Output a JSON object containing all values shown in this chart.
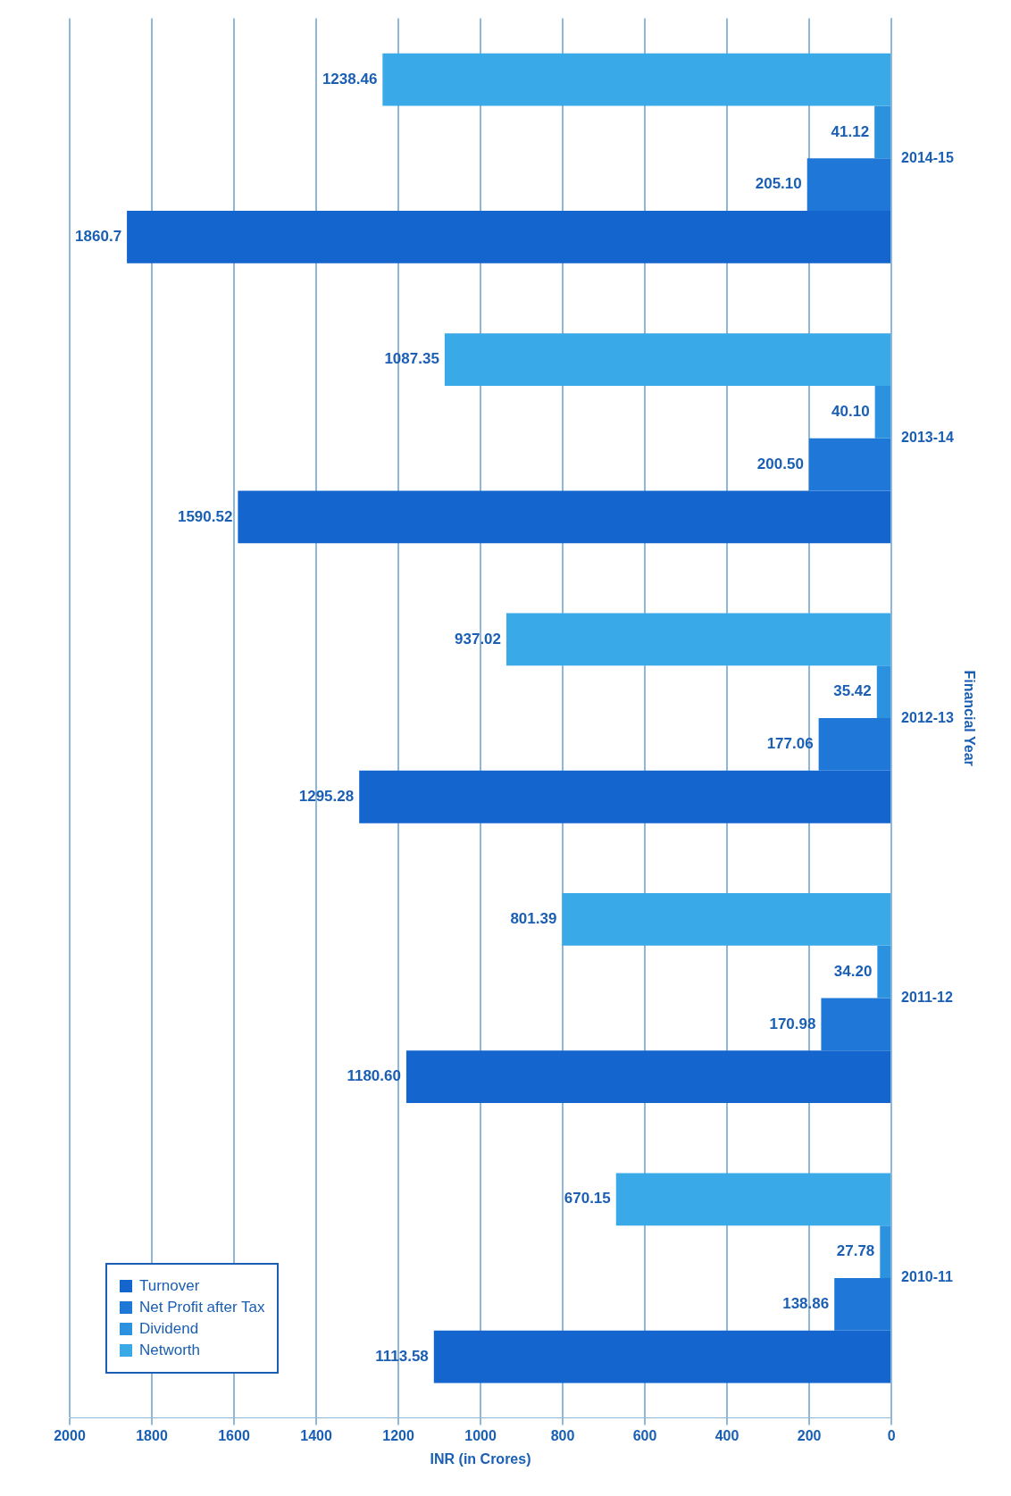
{
  "chart_data": {
    "type": "bar",
    "orientation": "horizontal",
    "xlabel": "INR (in Crores)",
    "ylabel": "Financial Year",
    "categories": [
      "2014-15",
      "2013-14",
      "2012-13",
      "2011-12",
      "2010-11"
    ],
    "series": [
      {
        "name": "Turnover",
        "color": "#1565cf",
        "values": [
          1860.7,
          1590.52,
          1295.28,
          1180.6,
          1113.58
        ],
        "value_labels": [
          "1860.7",
          "1590.52",
          "1295.28",
          "1180.60",
          "1113.58"
        ]
      },
      {
        "name": "Net Profit after Tax",
        "color": "#1f78d8",
        "values": [
          205.1,
          200.5,
          177.06,
          170.98,
          138.86
        ],
        "value_labels": [
          "205.10",
          "200.50",
          "177.06",
          "170.98",
          "138.86"
        ]
      },
      {
        "name": "Dividend",
        "color": "#2b92e0",
        "values": [
          41.12,
          40.1,
          35.42,
          34.2,
          27.78
        ],
        "value_labels": [
          "41.12",
          "40.10",
          "35.42",
          "34.20",
          "27.78"
        ]
      },
      {
        "name": "Networth",
        "color": "#3aa9e8",
        "values": [
          1238.46,
          1087.35,
          937.02,
          801.39,
          670.15
        ],
        "value_labels": [
          "1238.46",
          "1087.35",
          "937.02",
          "801.39",
          "670.15"
        ]
      }
    ],
    "xlim": [
      2000,
      0
    ],
    "xticks": [
      2000,
      1800,
      1600,
      1400,
      1200,
      1000,
      800,
      600,
      400,
      200,
      0
    ],
    "grid": "x",
    "legend": "bottom left"
  }
}
